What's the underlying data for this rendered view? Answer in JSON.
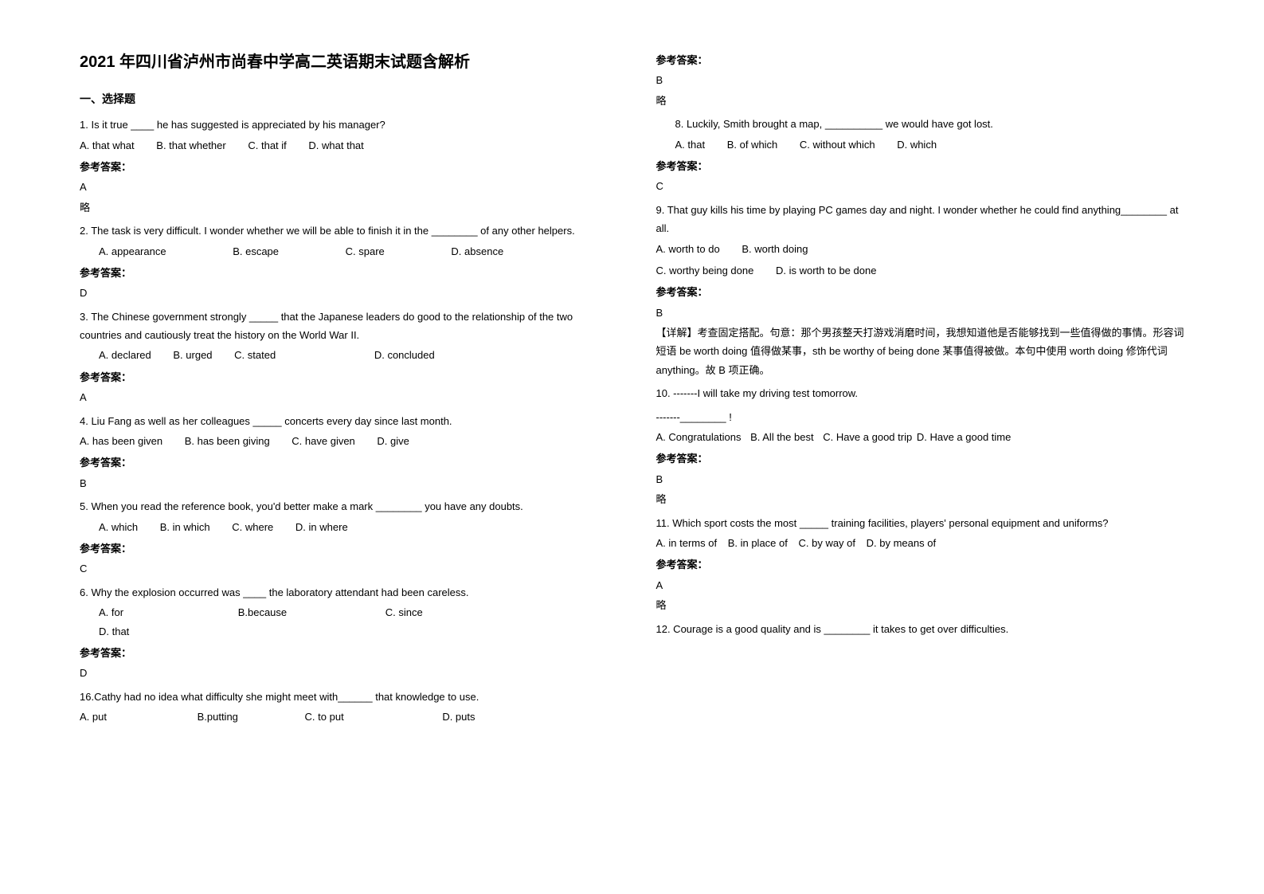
{
  "title": "2021 年四川省泸州市尚春中学高二英语期末试题含解析",
  "section1": "一、选择题",
  "answer_label": "参考答案：",
  "brief_note": "略",
  "q1": {
    "text": "1. Is it true ____ he has suggested is appreciated by his manager?",
    "opts": [
      "A. that what",
      "B. that whether",
      "C. that if",
      "D. what that"
    ],
    "ans": "A"
  },
  "q2": {
    "text": "2. The task is very difficult. I wonder whether we will be able to finish it in the ________ of any other helpers.",
    "opts": [
      "A. appearance",
      "B. escape",
      "C. spare",
      "D. absence"
    ],
    "ans": "D"
  },
  "q3": {
    "text": "3. The Chinese government strongly _____ that the Japanese leaders do good to the relationship of the two countries and cautiously treat the history on the World War II.",
    "opts": [
      "A. declared",
      "B. urged",
      "C. stated",
      "D. concluded"
    ],
    "ans": "A"
  },
  "q4": {
    "text": "4. Liu Fang as well as her colleagues _____ concerts every day since last month.",
    "opts": [
      "A. has been given",
      "B. has been giving",
      "C. have given",
      "D. give"
    ],
    "ans": "B"
  },
  "q5": {
    "text": "5. When you read the reference book, you'd better make a mark ________ you have any doubts.",
    "opts": [
      "A. which",
      "B. in which",
      "C. where",
      "D. in where"
    ],
    "ans": "C"
  },
  "q6": {
    "text": "6. Why the explosion occurred was ____ the laboratory attendant had been careless.",
    "opts": [
      "A. for",
      "B.because",
      "C. since",
      "D. that"
    ],
    "ans": "D"
  },
  "q7": {
    "text": "16.Cathy had no idea what difficulty she might meet with______ that knowledge to use.",
    "opts": [
      "A. put",
      "B.putting",
      "C. to put",
      "D. puts"
    ],
    "ans": "B"
  },
  "q8": {
    "text": "8. Luckily, Smith brought a map, __________ we would have got lost.",
    "opts": [
      "A. that",
      "B. of which",
      "C. without which",
      "D. which"
    ],
    "ans": "C"
  },
  "q9": {
    "text": "9. That guy kills his time by playing PC games day and night. I wonder whether he could find anything________ at all.",
    "opts": [
      "A. worth to do",
      "B. worth doing"
    ],
    "opts2": [
      "C. worthy being done",
      "D. is worth to be done"
    ],
    "ans": "B",
    "explain": "【详解】考查固定搭配。句意：那个男孩整天打游戏消磨时间，我想知道他是否能够找到一些值得做的事情。形容词短语 be worth doing 值得做某事，sth be worthy of being done 某事值得被做。本句中使用 worth doing 修饰代词 anything。故 B 项正确。"
  },
  "q10": {
    "text": "10. -------I will take my driving test tomorrow.",
    "text2": "-------________ !",
    "opts": [
      "A. Congratulations",
      "B. All the best",
      "C. Have a good trip",
      "D. Have a good time"
    ],
    "ans": "B"
  },
  "q11": {
    "text": "11. Which sport costs the most _____ training facilities, players' personal equipment and uniforms?",
    "opts": [
      "A. in terms of",
      "B. in place of",
      "C. by way of",
      "D. by means of"
    ],
    "ans": "A"
  },
  "q12": {
    "text": "12. Courage is a good quality and is ________ it takes to get over difficulties."
  }
}
